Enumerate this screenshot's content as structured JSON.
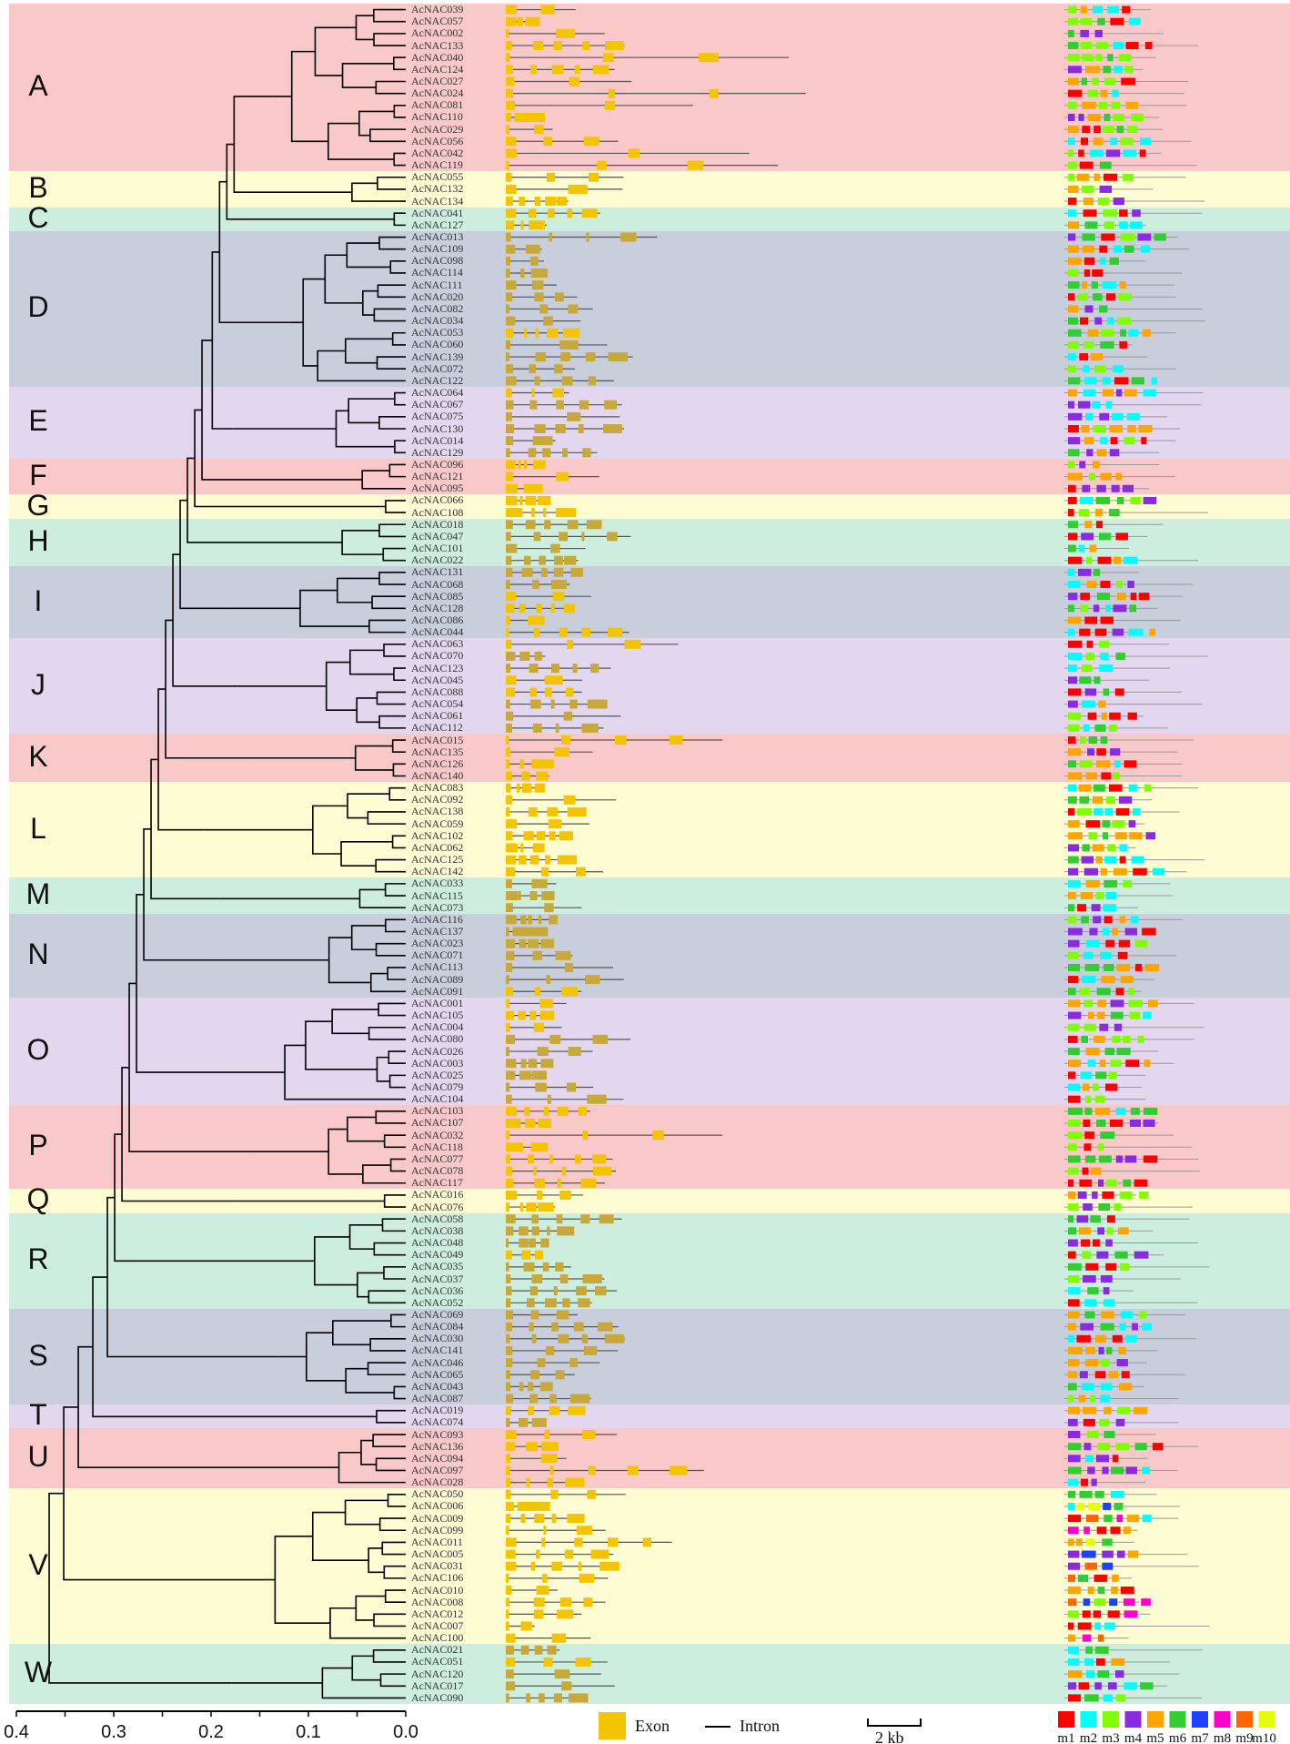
{
  "colors": {
    "pink": "#f9c9c9",
    "yellow": "#fdfcd2",
    "green": "#cdeedf",
    "blue": "#c9cedc",
    "purple": "#e2d7ee",
    "exon": "#f5c400",
    "exon_dark": "#c9a83a",
    "intron": "#555555",
    "tree": "#000000"
  },
  "groups": [
    {
      "name": "A",
      "color": "pink",
      "genes": [
        "AcNAC039",
        "AcNAC057",
        "AcNAC002",
        "AcNAC133",
        "AcNAC040",
        "AcNAC124",
        "AcNAC027",
        "AcNAC024",
        "AcNAC081",
        "AcNAC110",
        "AcNAC029",
        "AcNAC056",
        "AcNAC042",
        "AcNAC119"
      ]
    },
    {
      "name": "B",
      "color": "yellow",
      "genes": [
        "AcNAC055",
        "AcNAC132",
        "AcNAC134"
      ]
    },
    {
      "name": "C",
      "color": "green",
      "genes": [
        "AcNAC041",
        "AcNAC127"
      ]
    },
    {
      "name": "D",
      "color": "blue",
      "genes": [
        "AcNAC013",
        "AcNAC109",
        "AcNAC098",
        "AcNAC114",
        "AcNAC111",
        "AcNAC020",
        "AcNAC082",
        "AcNAC034",
        "AcNAC053",
        "AcNAC060",
        "AcNAC139",
        "AcNAC072",
        "AcNAC122"
      ]
    },
    {
      "name": "E",
      "color": "purple",
      "genes": [
        "AcNAC064",
        "AcNAC067",
        "AcNAC075",
        "AcNAC130",
        "AcNAC014",
        "AcNAC129"
      ]
    },
    {
      "name": "F",
      "color": "pink",
      "genes": [
        "AcNAC096",
        "AcNAC121",
        "AcNAC095"
      ]
    },
    {
      "name": "G",
      "color": "yellow",
      "genes": [
        "AcNAC066",
        "AcNAC108"
      ]
    },
    {
      "name": "H",
      "color": "green",
      "genes": [
        "AcNAC018",
        "AcNAC047",
        "AcNAC101",
        "AcNAC022"
      ]
    },
    {
      "name": "I",
      "color": "blue",
      "genes": [
        "AcNAC131",
        "AcNAC068",
        "AcNAC085",
        "AcNAC128",
        "AcNAC086",
        "AcNAC044"
      ]
    },
    {
      "name": "J",
      "color": "purple",
      "genes": [
        "AcNAC063",
        "AcNAC070",
        "AcNAC123",
        "AcNAC045",
        "AcNAC088",
        "AcNAC054",
        "AcNAC061",
        "AcNAC112"
      ]
    },
    {
      "name": "K",
      "color": "pink",
      "genes": [
        "AcNAC015",
        "AcNAC135",
        "AcNAC126",
        "AcNAC140"
      ]
    },
    {
      "name": "L",
      "color": "yellow",
      "genes": [
        "AcNAC083",
        "AcNAC092",
        "AcNAC138",
        "AcNAC059",
        "AcNAC102",
        "AcNAC062",
        "AcNAC125",
        "AcNAC142"
      ]
    },
    {
      "name": "M",
      "color": "green",
      "genes": [
        "AcNAC033",
        "AcNAC115",
        "AcNAC073"
      ]
    },
    {
      "name": "N",
      "color": "blue",
      "genes": [
        "AcNAC116",
        "AcNAC137",
        "AcNAC023",
        "AcNAC071",
        "AcNAC113",
        "AcNAC089",
        "AcNAC091"
      ]
    },
    {
      "name": "O",
      "color": "purple",
      "genes": [
        "AcNAC001",
        "AcNAC105",
        "AcNAC004",
        "AcNAC080",
        "AcNAC026",
        "AcNAC003",
        "AcNAC025",
        "AcNAC079",
        "AcNAC104"
      ]
    },
    {
      "name": "P",
      "color": "pink",
      "genes": [
        "AcNAC103",
        "AcNAC107",
        "AcNAC032",
        "AcNAC118",
        "AcNAC077",
        "AcNAC078",
        "AcNAC117"
      ]
    },
    {
      "name": "Q",
      "color": "yellow",
      "genes": [
        "AcNAC016",
        "AcNAC076"
      ]
    },
    {
      "name": "R",
      "color": "green",
      "genes": [
        "AcNAC058",
        "AcNAC038",
        "AcNAC048",
        "AcNAC049",
        "AcNAC035",
        "AcNAC037",
        "AcNAC036",
        "AcNAC052"
      ]
    },
    {
      "name": "S",
      "color": "blue",
      "genes": [
        "AcNAC069",
        "AcNAC084",
        "AcNAC030",
        "AcNAC141",
        "AcNAC046",
        "AcNAC065",
        "AcNAC043",
        "AcNAC087"
      ]
    },
    {
      "name": "T",
      "color": "purple",
      "genes": [
        "AcNAC019",
        "AcNAC074"
      ]
    },
    {
      "name": "U",
      "color": "pink",
      "genes": [
        "AcNAC093",
        "AcNAC136",
        "AcNAC094",
        "AcNAC097",
        "AcNAC028"
      ]
    },
    {
      "name": "V",
      "color": "yellow",
      "genes": [
        "AcNAC050",
        "AcNAC006",
        "AcNAC009",
        "AcNAC099",
        "AcNAC011",
        "AcNAC005",
        "AcNAC031",
        "AcNAC106",
        "AcNAC010",
        "AcNAC008",
        "AcNAC012",
        "AcNAC007",
        "AcNAC100"
      ]
    },
    {
      "name": "W",
      "color": "green",
      "genes": [
        "AcNAC021",
        "AcNAC051",
        "AcNAC120",
        "AcNAC017",
        "AcNAC090"
      ]
    }
  ],
  "axis": {
    "ticks": [
      "0.4",
      "0.3",
      "0.2",
      "0.1",
      "0.0"
    ]
  },
  "legend": {
    "exon": "Exon",
    "intron": "Intron",
    "scale": "2 kb"
  },
  "motifs": [
    {
      "label": "m1",
      "color": "#ff0000"
    },
    {
      "label": "m2",
      "color": "#00ffff"
    },
    {
      "label": "m3",
      "color": "#7fff00"
    },
    {
      "label": "m4",
      "color": "#8a2be2"
    },
    {
      "label": "m5",
      "color": "#ffa500"
    },
    {
      "label": "m6",
      "color": "#32cd32"
    },
    {
      "label": "m7",
      "color": "#1e40ff"
    },
    {
      "label": "m8",
      "color": "#ff00cc"
    },
    {
      "label": "m9",
      "color": "#ff6600"
    },
    {
      "label": "m10",
      "color": "#e6ff00"
    }
  ]
}
